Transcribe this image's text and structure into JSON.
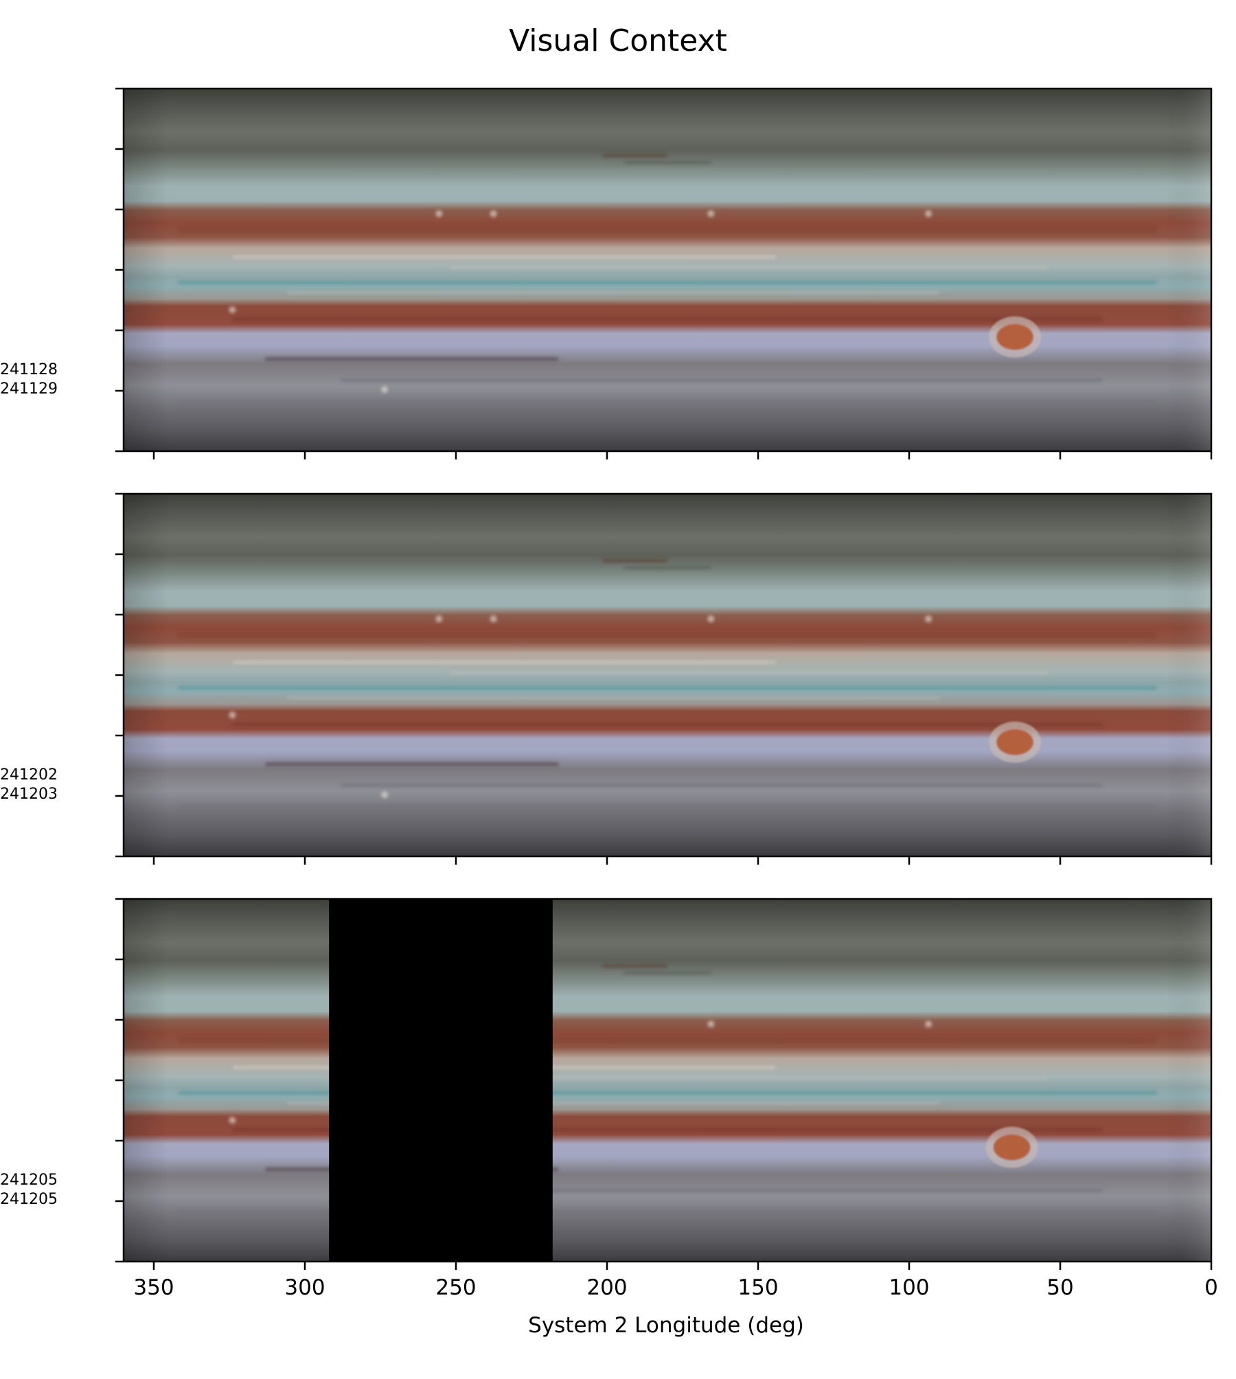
{
  "chart_data": {
    "type": "image-panels",
    "title": "Visual Context",
    "xlabel": "System 2 Longitude (deg)",
    "xlim": [
      360,
      0
    ],
    "xticks": [
      350,
      300,
      250,
      200,
      150,
      100,
      50,
      0
    ],
    "panels": [
      {
        "date_labels": [
          "241128",
          "241129"
        ],
        "red_spot_longitude": 65,
        "masked_longitude_range": null
      },
      {
        "date_labels": [
          "241202",
          "241203"
        ],
        "red_spot_longitude": 65,
        "masked_longitude_range": null
      },
      {
        "date_labels": [
          "241205",
          "241205"
        ],
        "red_spot_longitude": 66,
        "masked_longitude_range": [
          292,
          218
        ]
      }
    ]
  }
}
